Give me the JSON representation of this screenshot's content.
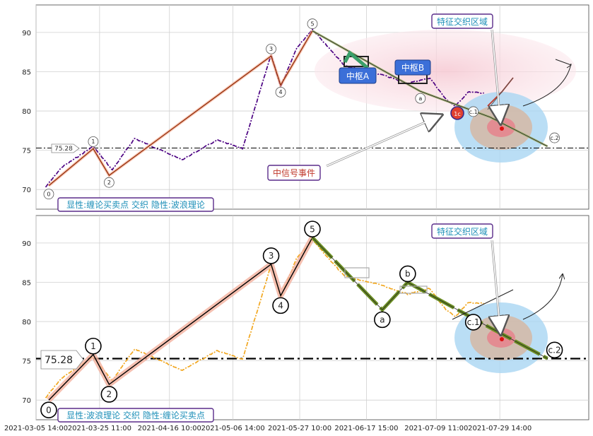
{
  "chart_data": [
    {
      "type": "line",
      "panel": "top",
      "ylim": [
        67.5,
        93.5
      ],
      "yticks": [
        70,
        75,
        80,
        85,
        90
      ],
      "grid": true,
      "price_series_color": "#4b0082",
      "wave_points": [
        {
          "label": "0",
          "x": "2021-03-09",
          "y": 70.5
        },
        {
          "label": "1",
          "x": "2021-03-23",
          "y": 75.2
        },
        {
          "label": "2",
          "x": "2021-03-28",
          "y": 71.8
        },
        {
          "label": "3",
          "x": "2021-05-18",
          "y": 87.0
        },
        {
          "label": "4",
          "x": "2021-05-21",
          "y": 83.3
        },
        {
          "label": "5",
          "x": "2021-05-31",
          "y": 90.2
        },
        {
          "label": "a",
          "x": "2021-07-04",
          "y": 82.5
        },
        {
          "label": "c.1",
          "x": "2021-07-26",
          "y": 79.2
        },
        {
          "label": "c.2",
          "x": "2021-08-13",
          "y": 75.5
        }
      ],
      "annotations": {
        "level_label": "75.28",
        "signal_event": "中信号事件",
        "feature_zone": "特征交织区域",
        "pivot_a": "中枢A",
        "pivot_b": "中枢B",
        "buy_sell_marker": "1c",
        "legend": "显性:缠论买卖点 交织 隐性:波浪理论"
      },
      "colors": {
        "wave_line": "#c8552a",
        "wave_glow": "#f3a98f",
        "ellipse_pink": "#f9dce3",
        "ellipse_blue": "#9fd0ef",
        "box_title": "#5a2c8a",
        "pivot_box": "#3b6fd8"
      }
    },
    {
      "type": "line",
      "panel": "bottom",
      "ylim": [
        67.5,
        93.5
      ],
      "yticks": [
        70,
        75,
        80,
        85,
        90
      ],
      "grid": true,
      "price_series_color": "#f2a71f",
      "wave_points": [
        {
          "label": "0",
          "x": "2021-03-09",
          "y": 70.0
        },
        {
          "label": "1",
          "x": "2021-03-23",
          "y": 75.8
        },
        {
          "label": "2",
          "x": "2021-03-28",
          "y": 72.0
        },
        {
          "label": "3",
          "x": "2021-05-18",
          "y": 87.3
        },
        {
          "label": "4",
          "x": "2021-05-21",
          "y": 83.3
        },
        {
          "label": "5",
          "x": "2021-05-31",
          "y": 90.7
        },
        {
          "label": "a",
          "x": "2021-06-22",
          "y": 81.5
        },
        {
          "label": "b",
          "x": "2021-06-30",
          "y": 85.0
        },
        {
          "label": "c.1",
          "x": "2021-07-26",
          "y": 79.2
        },
        {
          "label": "c.2",
          "x": "2021-08-13",
          "y": 75.3
        }
      ],
      "annotations": {
        "level_label": "75.28",
        "feature_zone": "特征交织区域",
        "legend": "显性:波浪理论 交织 隐性:缠论买卖点"
      },
      "colors": {
        "impulse_line": "#000000",
        "impulse_glow": "#f3b09e",
        "correction_line": "#6b8e23"
      }
    }
  ],
  "x_axis": {
    "ticks": [
      "2021-03-05 14:00",
      "2021-03-25 11:00",
      "2021-04-16 10:00",
      "2021-05-06 14:00",
      "2021-05-27 10:00",
      "2021-06-17 15:00",
      "2021-07-09 11:00",
      "2021-07-29 14:00"
    ]
  },
  "reference_level": 75.28
}
